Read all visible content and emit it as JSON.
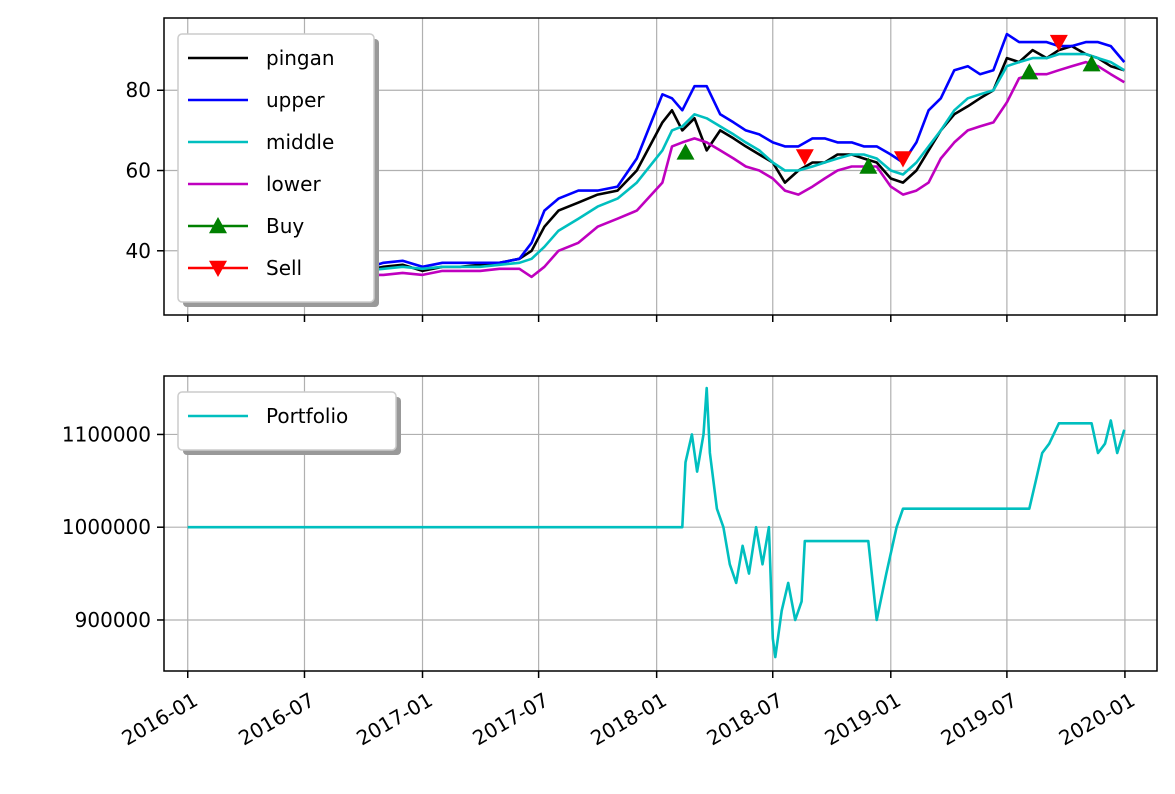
{
  "chart_data": [
    {
      "type": "line",
      "title": "",
      "xlabel": "",
      "ylabel": "",
      "ylim": [
        24,
        98
      ],
      "y_ticks": [
        40,
        60,
        80
      ],
      "x_ticks": [
        "2016-01",
        "2016-07",
        "2017-01",
        "2017-07",
        "2018-01",
        "2018-07",
        "2019-01",
        "2019-07",
        "2020-01"
      ],
      "grid": true,
      "legend_position": "upper-left",
      "series": [
        {
          "name": "pingan",
          "color": "#000000",
          "x": [
            "2016-02-01",
            "2016-03-01",
            "2016-04-01",
            "2016-05-01",
            "2016-06-01",
            "2016-07-01",
            "2016-08-01",
            "2016-09-01",
            "2016-10-01",
            "2016-11-01",
            "2016-12-01",
            "2017-01-01",
            "2017-02-01",
            "2017-03-01",
            "2017-04-01",
            "2017-05-01",
            "2017-06-01",
            "2017-06-20",
            "2017-07-10",
            "2017-08-01",
            "2017-09-01",
            "2017-10-01",
            "2017-11-01",
            "2017-12-01",
            "2018-01-10",
            "2018-01-25",
            "2018-02-10",
            "2018-03-01",
            "2018-03-20",
            "2018-04-10",
            "2018-05-01",
            "2018-05-20",
            "2018-06-10",
            "2018-07-01",
            "2018-07-20",
            "2018-08-10",
            "2018-09-01",
            "2018-09-20",
            "2018-10-10",
            "2018-11-01",
            "2018-11-20",
            "2018-12-10",
            "2019-01-01",
            "2019-01-20",
            "2019-02-10",
            "2019-03-01",
            "2019-03-20",
            "2019-04-10",
            "2019-05-01",
            "2019-05-20",
            "2019-06-10",
            "2019-07-01",
            "2019-07-20",
            "2019-08-10",
            "2019-09-01",
            "2019-09-20",
            "2019-10-10",
            "2019-11-01",
            "2019-11-20",
            "2019-12-10",
            "2019-12-31"
          ],
          "y": [
            30,
            31,
            32,
            33,
            34,
            34,
            34.5,
            35,
            35,
            36,
            36.5,
            35,
            36,
            36,
            36.5,
            37,
            38,
            40,
            46,
            50,
            52,
            54,
            55,
            60,
            72,
            75,
            70,
            73,
            65,
            70,
            68,
            66,
            64,
            62,
            57,
            60,
            62,
            62,
            64,
            64,
            63,
            62,
            58,
            57,
            60,
            65,
            70,
            74,
            76,
            78,
            80,
            88,
            87,
            90,
            88,
            90,
            91,
            89,
            88,
            86,
            85
          ]
        },
        {
          "name": "upper",
          "color": "#0000ff",
          "x": [
            "2016-02-01",
            "2016-03-01",
            "2016-04-01",
            "2016-05-01",
            "2016-06-01",
            "2016-07-01",
            "2016-08-01",
            "2016-09-01",
            "2016-10-01",
            "2016-11-01",
            "2016-12-01",
            "2017-01-01",
            "2017-02-01",
            "2017-03-01",
            "2017-04-01",
            "2017-05-01",
            "2017-06-01",
            "2017-06-20",
            "2017-07-10",
            "2017-08-01",
            "2017-09-01",
            "2017-10-01",
            "2017-11-01",
            "2017-12-01",
            "2018-01-10",
            "2018-01-25",
            "2018-02-10",
            "2018-03-01",
            "2018-03-20",
            "2018-04-10",
            "2018-05-01",
            "2018-05-20",
            "2018-06-10",
            "2018-07-01",
            "2018-07-20",
            "2018-08-10",
            "2018-09-01",
            "2018-09-20",
            "2018-10-10",
            "2018-11-01",
            "2018-11-20",
            "2018-12-10",
            "2019-01-01",
            "2019-01-20",
            "2019-02-10",
            "2019-03-01",
            "2019-03-20",
            "2019-04-10",
            "2019-05-01",
            "2019-05-20",
            "2019-06-10",
            "2019-07-01",
            "2019-07-20",
            "2019-08-10",
            "2019-09-01",
            "2019-09-20",
            "2019-10-10",
            "2019-11-01",
            "2019-11-20",
            "2019-12-10",
            "2019-12-31"
          ],
          "y": [
            34,
            35,
            36,
            35,
            35,
            35,
            35,
            35,
            35.5,
            37,
            37.5,
            36,
            37,
            37,
            37,
            37,
            38,
            42,
            50,
            53,
            55,
            55,
            56,
            63,
            79,
            78,
            75,
            81,
            81,
            74,
            72,
            70,
            69,
            67,
            66,
            66,
            68,
            68,
            67,
            67,
            66,
            66,
            64,
            62,
            67,
            75,
            78,
            85,
            86,
            84,
            85,
            94,
            92,
            92,
            92,
            91,
            91,
            92,
            92,
            91,
            87
          ]
        },
        {
          "name": "middle",
          "color": "#00bfbf",
          "x": [
            "2016-02-01",
            "2016-03-01",
            "2016-04-01",
            "2016-05-01",
            "2016-06-01",
            "2016-07-01",
            "2016-08-01",
            "2016-09-01",
            "2016-10-01",
            "2016-11-01",
            "2016-12-01",
            "2017-01-01",
            "2017-02-01",
            "2017-03-01",
            "2017-04-01",
            "2017-05-01",
            "2017-06-01",
            "2017-06-20",
            "2017-07-10",
            "2017-08-01",
            "2017-09-01",
            "2017-10-01",
            "2017-11-01",
            "2017-12-01",
            "2018-01-10",
            "2018-01-25",
            "2018-02-10",
            "2018-03-01",
            "2018-03-20",
            "2018-04-10",
            "2018-05-01",
            "2018-05-20",
            "2018-06-10",
            "2018-07-01",
            "2018-07-20",
            "2018-08-10",
            "2018-09-01",
            "2018-09-20",
            "2018-10-10",
            "2018-11-01",
            "2018-11-20",
            "2018-12-10",
            "2019-01-01",
            "2019-01-20",
            "2019-02-10",
            "2019-03-01",
            "2019-03-20",
            "2019-04-10",
            "2019-05-01",
            "2019-05-20",
            "2019-06-10",
            "2019-07-01",
            "2019-07-20",
            "2019-08-10",
            "2019-09-01",
            "2019-09-20",
            "2019-10-10",
            "2019-11-01",
            "2019-11-20",
            "2019-12-10",
            "2019-12-31"
          ],
          "y": [
            31,
            32,
            33,
            33.5,
            34,
            34,
            34.5,
            34.5,
            35,
            35.5,
            36,
            35.5,
            36,
            36,
            36,
            36.5,
            37,
            38,
            41,
            45,
            48,
            51,
            53,
            57,
            65,
            70,
            71,
            74,
            73,
            71,
            69,
            67,
            65,
            62,
            60,
            60,
            61,
            62,
            63,
            64,
            64,
            63,
            60,
            59,
            62,
            66,
            70,
            75,
            78,
            79,
            80,
            86,
            87,
            88,
            88,
            89,
            89,
            89,
            88,
            87,
            85
          ]
        },
        {
          "name": "lower",
          "color": "#bf00bf",
          "x": [
            "2016-02-01",
            "2016-03-01",
            "2016-04-01",
            "2016-05-01",
            "2016-06-01",
            "2016-07-01",
            "2016-08-01",
            "2016-09-01",
            "2016-10-01",
            "2016-11-01",
            "2016-12-01",
            "2017-01-01",
            "2017-02-01",
            "2017-03-01",
            "2017-04-01",
            "2017-05-01",
            "2017-06-01",
            "2017-06-20",
            "2017-07-10",
            "2017-08-01",
            "2017-09-01",
            "2017-10-01",
            "2017-11-01",
            "2017-12-01",
            "2018-01-10",
            "2018-01-25",
            "2018-02-10",
            "2018-03-01",
            "2018-03-20",
            "2018-04-10",
            "2018-05-01",
            "2018-05-20",
            "2018-06-10",
            "2018-07-01",
            "2018-07-20",
            "2018-08-10",
            "2018-09-01",
            "2018-09-20",
            "2018-10-10",
            "2018-11-01",
            "2018-11-20",
            "2018-12-10",
            "2019-01-01",
            "2019-01-20",
            "2019-02-10",
            "2019-03-01",
            "2019-03-20",
            "2019-04-10",
            "2019-05-01",
            "2019-05-20",
            "2019-06-10",
            "2019-07-01",
            "2019-07-20",
            "2019-08-10",
            "2019-09-01",
            "2019-09-20",
            "2019-10-10",
            "2019-11-01",
            "2019-11-20",
            "2019-12-10",
            "2019-12-31"
          ],
          "y": [
            28,
            29,
            30,
            31,
            32,
            33,
            33.5,
            34,
            34,
            34,
            34.5,
            34,
            35,
            35,
            35,
            35.5,
            35.5,
            33.5,
            36,
            40,
            42,
            46,
            48,
            50,
            57,
            66,
            67,
            68,
            67,
            65,
            63,
            61,
            60,
            58,
            55,
            54,
            56,
            58,
            60,
            61,
            61,
            61,
            56,
            54,
            55,
            57,
            63,
            67,
            70,
            71,
            72,
            77,
            83,
            84,
            84,
            85,
            86,
            87,
            86,
            84,
            82
          ]
        },
        {
          "name": "Buy",
          "color": "#008000",
          "marker": "triangle-up",
          "x": [
            "2018-02-15",
            "2018-11-27",
            "2019-08-05",
            "2019-11-10"
          ],
          "y": [
            64.5,
            61,
            84.5,
            86.5
          ]
        },
        {
          "name": "Sell",
          "color": "#ff0000",
          "marker": "triangle-down",
          "x": [
            "2018-08-20",
            "2019-01-20",
            "2019-09-20"
          ],
          "y": [
            63.5,
            63,
            92
          ]
        }
      ]
    },
    {
      "type": "line",
      "title": "",
      "xlabel": "",
      "ylabel": "",
      "ylim": [
        845000,
        1163000
      ],
      "y_ticks": [
        900000,
        1000000,
        1100000
      ],
      "x_ticks": [
        "2016-01",
        "2016-07",
        "2017-01",
        "2017-07",
        "2018-01",
        "2018-07",
        "2019-01",
        "2019-07",
        "2020-01"
      ],
      "grid": true,
      "legend_position": "upper-left",
      "series": [
        {
          "name": "Portfolio",
          "color": "#00bfbf",
          "x": [
            "2016-01-01",
            "2018-02-10",
            "2018-02-15",
            "2018-02-25",
            "2018-03-05",
            "2018-03-15",
            "2018-03-20",
            "2018-03-25",
            "2018-04-05",
            "2018-04-15",
            "2018-04-25",
            "2018-05-05",
            "2018-05-15",
            "2018-05-25",
            "2018-06-05",
            "2018-06-15",
            "2018-06-25",
            "2018-07-01",
            "2018-07-05",
            "2018-07-15",
            "2018-07-25",
            "2018-08-05",
            "2018-08-15",
            "2018-08-20",
            "2018-11-27",
            "2018-12-10",
            "2018-12-25",
            "2019-01-10",
            "2019-01-20",
            "2019-08-05",
            "2019-08-15",
            "2019-08-25",
            "2019-09-05",
            "2019-09-20",
            "2019-11-10",
            "2019-11-20",
            "2019-12-01",
            "2019-12-10",
            "2019-12-20",
            "2019-12-31"
          ],
          "y": [
            1000000,
            1000000,
            1070000,
            1100000,
            1060000,
            1100000,
            1150000,
            1080000,
            1020000,
            1000000,
            960000,
            940000,
            980000,
            950000,
            1000000,
            960000,
            1000000,
            880000,
            860000,
            910000,
            940000,
            900000,
            920000,
            985000,
            985000,
            900000,
            950000,
            1000000,
            1020000,
            1020000,
            1050000,
            1080000,
            1090000,
            1112000,
            1112000,
            1080000,
            1090000,
            1115000,
            1080000,
            1105000
          ]
        }
      ]
    }
  ]
}
